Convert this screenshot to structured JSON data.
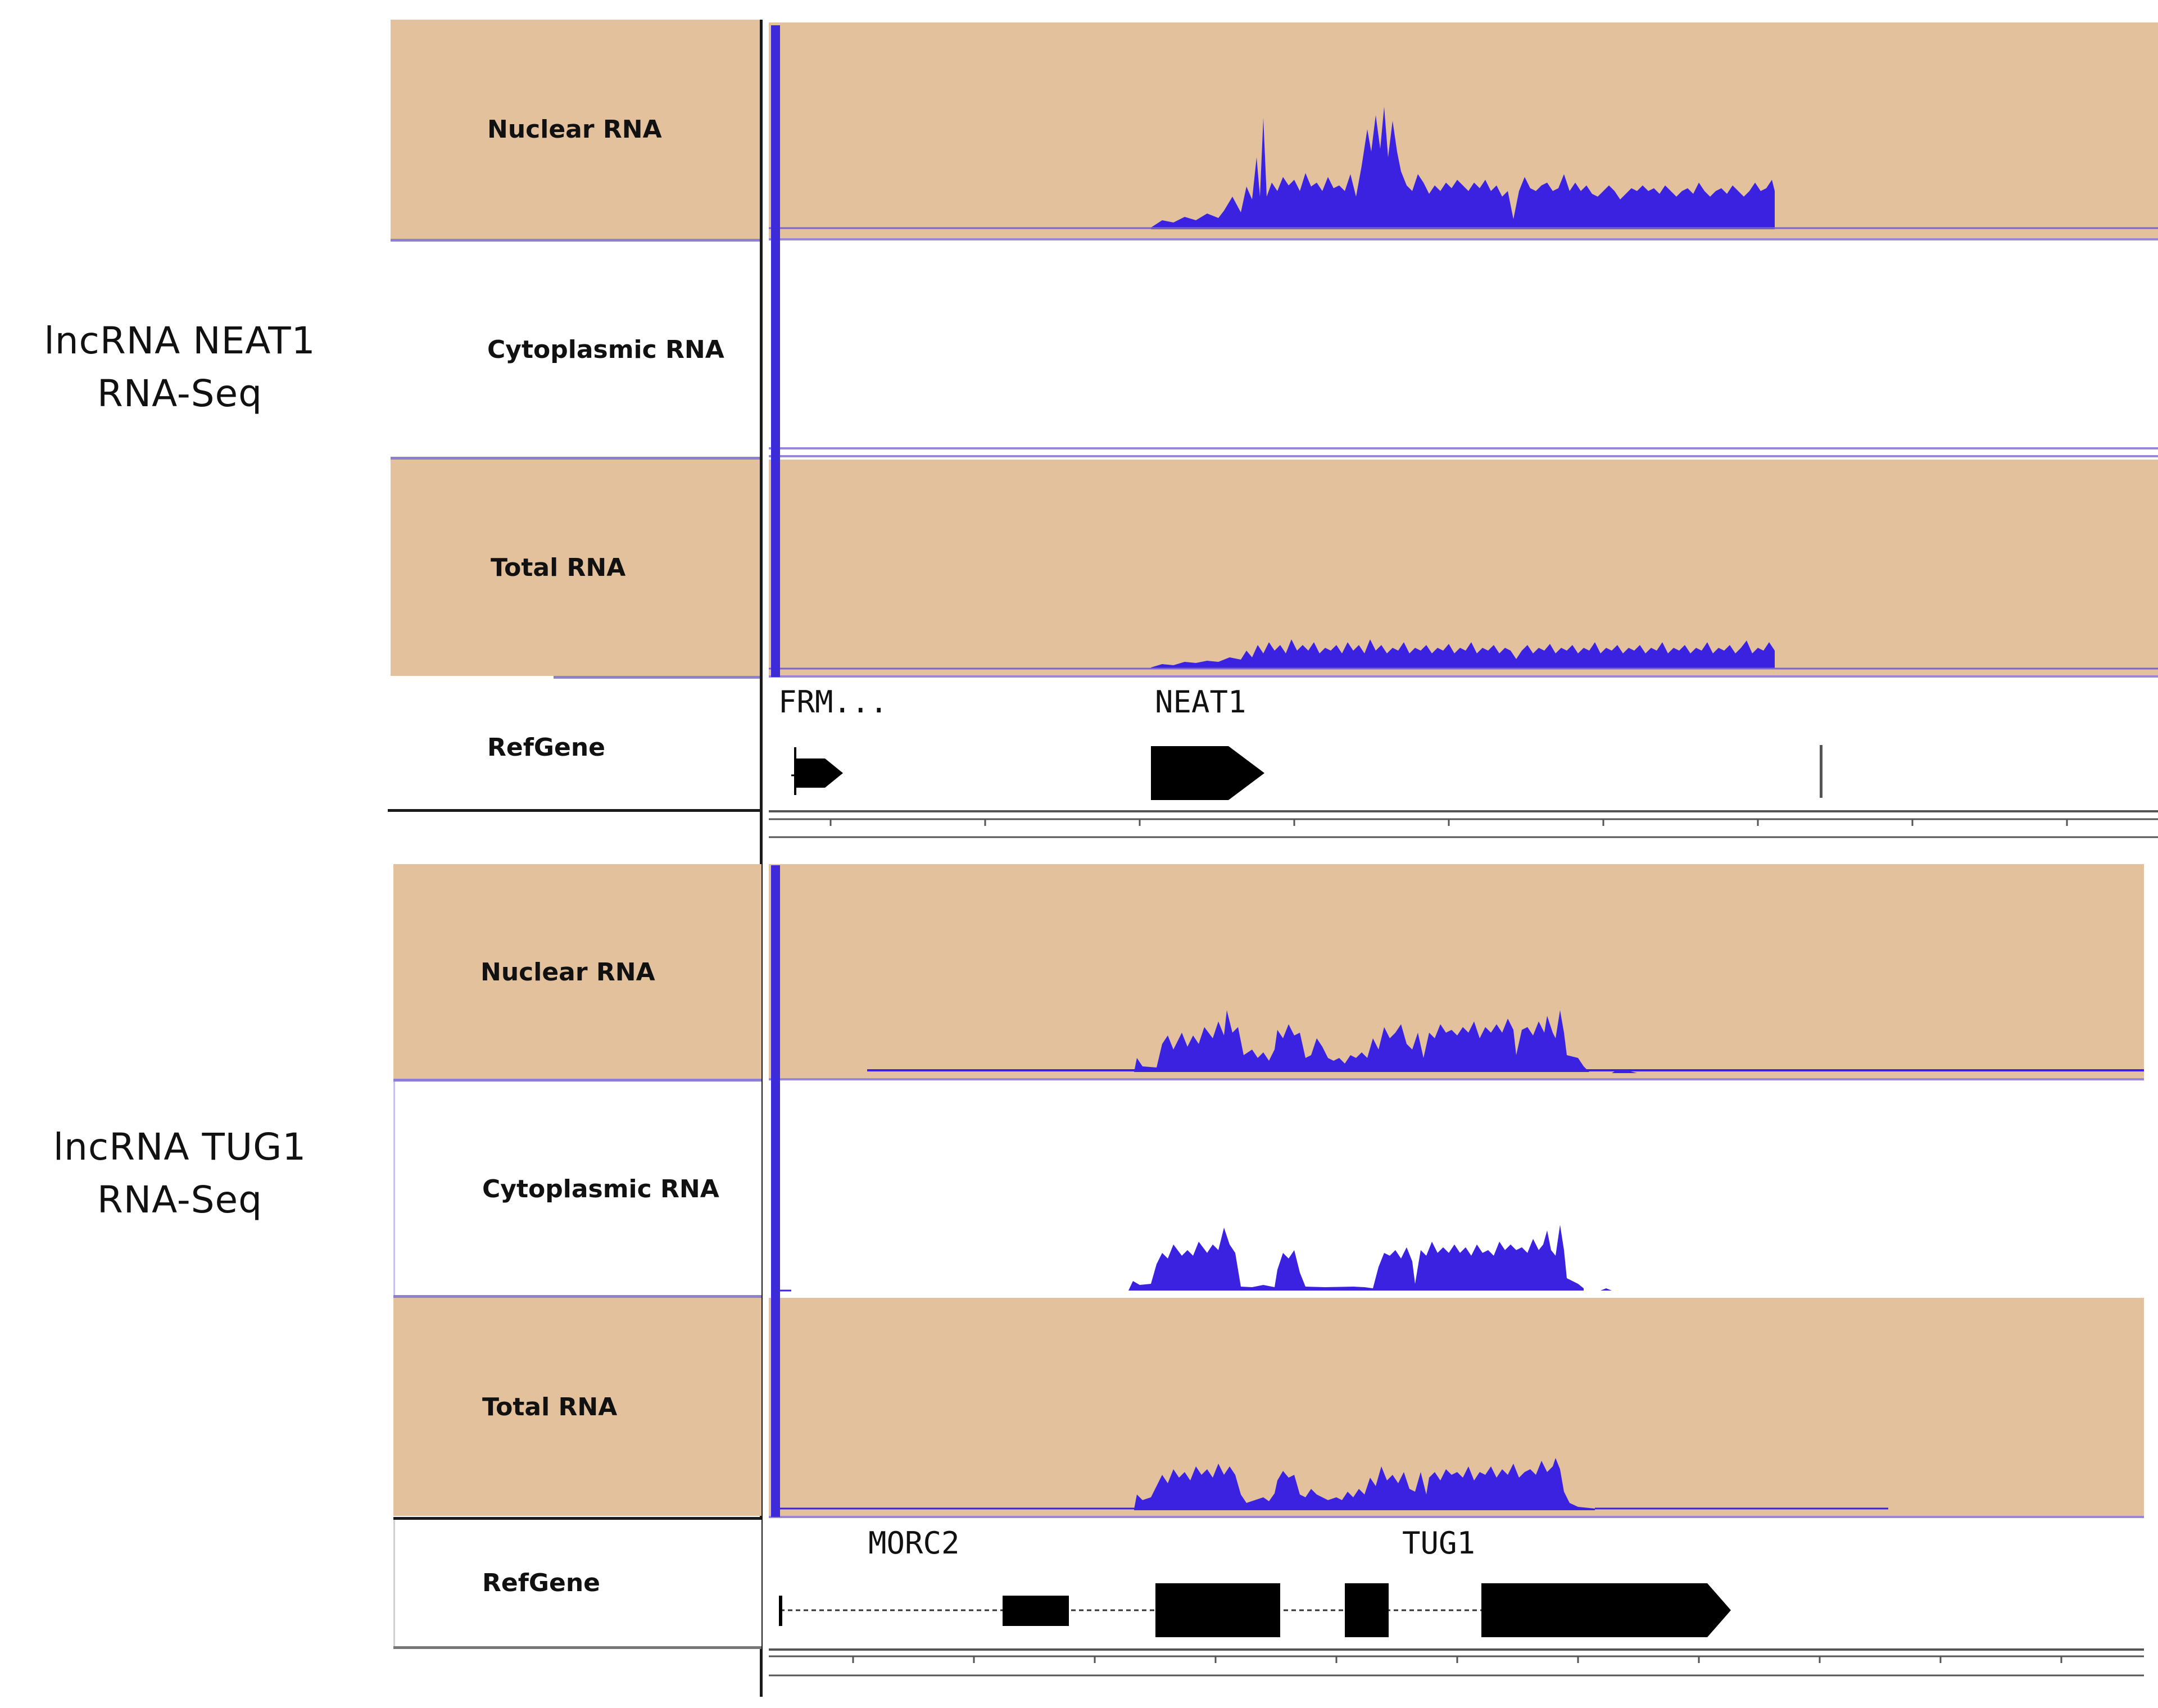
{
  "groups": [
    {
      "title_line1": "lncRNA NEAT1",
      "title_line2": "RNA-Seq",
      "tracks": [
        {
          "label": "Nuclear RNA"
        },
        {
          "label": "Cytoplasmic RNA"
        },
        {
          "label": "Total RNA"
        }
      ],
      "refgene_label": "RefGene",
      "genes": [
        "FRM...",
        "NEAT1"
      ]
    },
    {
      "title_line1": "lncRNA TUG1",
      "title_line2": "RNA-Seq",
      "tracks": [
        {
          "label": "Nuclear RNA"
        },
        {
          "label": "Cytoplasmic RNA"
        },
        {
          "label": "Total RNA"
        }
      ],
      "refgene_label": "RefGene",
      "genes": [
        "MORC2",
        "TUG1"
      ]
    }
  ],
  "colors": {
    "track_background": "#e3c19c",
    "coverage_fill": "#3a22e0",
    "scale_bar": "#3b2bd8",
    "gene_feature": "#000000"
  }
}
